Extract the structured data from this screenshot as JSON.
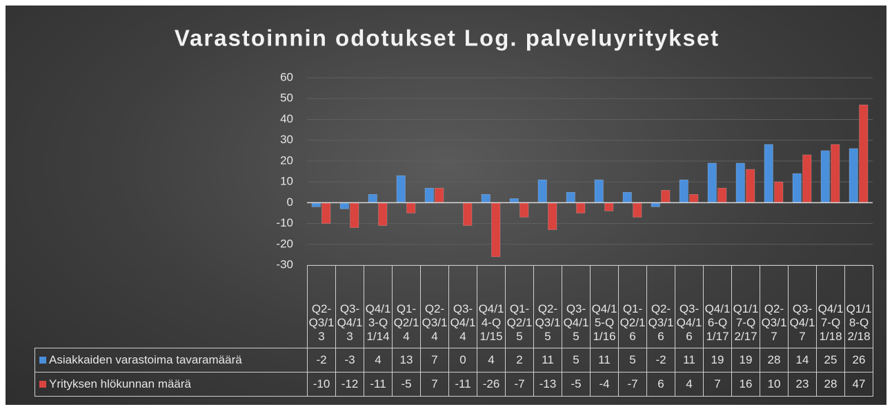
{
  "chart_data": {
    "type": "bar",
    "title": "Varastoinnin odotukset Log. palveluyritykset",
    "categories": [
      "Q2-Q3/13",
      "Q3-Q4/13",
      "Q4/13-Q1/14",
      "Q1-Q2/14",
      "Q2-Q3/14",
      "Q3-Q4/14",
      "Q4/14-Q1/15",
      "Q1-Q2/15",
      "Q2-Q3/15",
      "Q3-Q4/15",
      "Q4/15-Q1/16",
      "Q1-Q2/16",
      "Q2-Q3/16",
      "Q3-Q4/16",
      "Q4/16-Q1/17",
      "Q1/17-Q2/17",
      "Q2-Q3/17",
      "Q3-Q4/17",
      "Q4/17-Q1/18",
      "Q1/18-Q2/18"
    ],
    "series": [
      {
        "name": "Asiakkaiden varastoima tavaramäärä",
        "color": "#4a8fdc",
        "values": [
          -2,
          -3,
          4,
          13,
          7,
          0,
          4,
          2,
          11,
          5,
          11,
          5,
          -2,
          11,
          19,
          19,
          28,
          14,
          25,
          26
        ]
      },
      {
        "name": "Yrityksen hlökunnan määrä",
        "color": "#d9443f",
        "values": [
          -10,
          -12,
          -11,
          -5,
          7,
          -11,
          -26,
          -7,
          -13,
          -5,
          -4,
          -7,
          6,
          4,
          7,
          16,
          10,
          23,
          28,
          47
        ]
      }
    ],
    "ylim": [
      -30,
      60
    ],
    "yticks": [
      -30,
      -20,
      -10,
      0,
      10,
      20,
      30,
      40,
      50,
      60
    ],
    "grid": true
  }
}
